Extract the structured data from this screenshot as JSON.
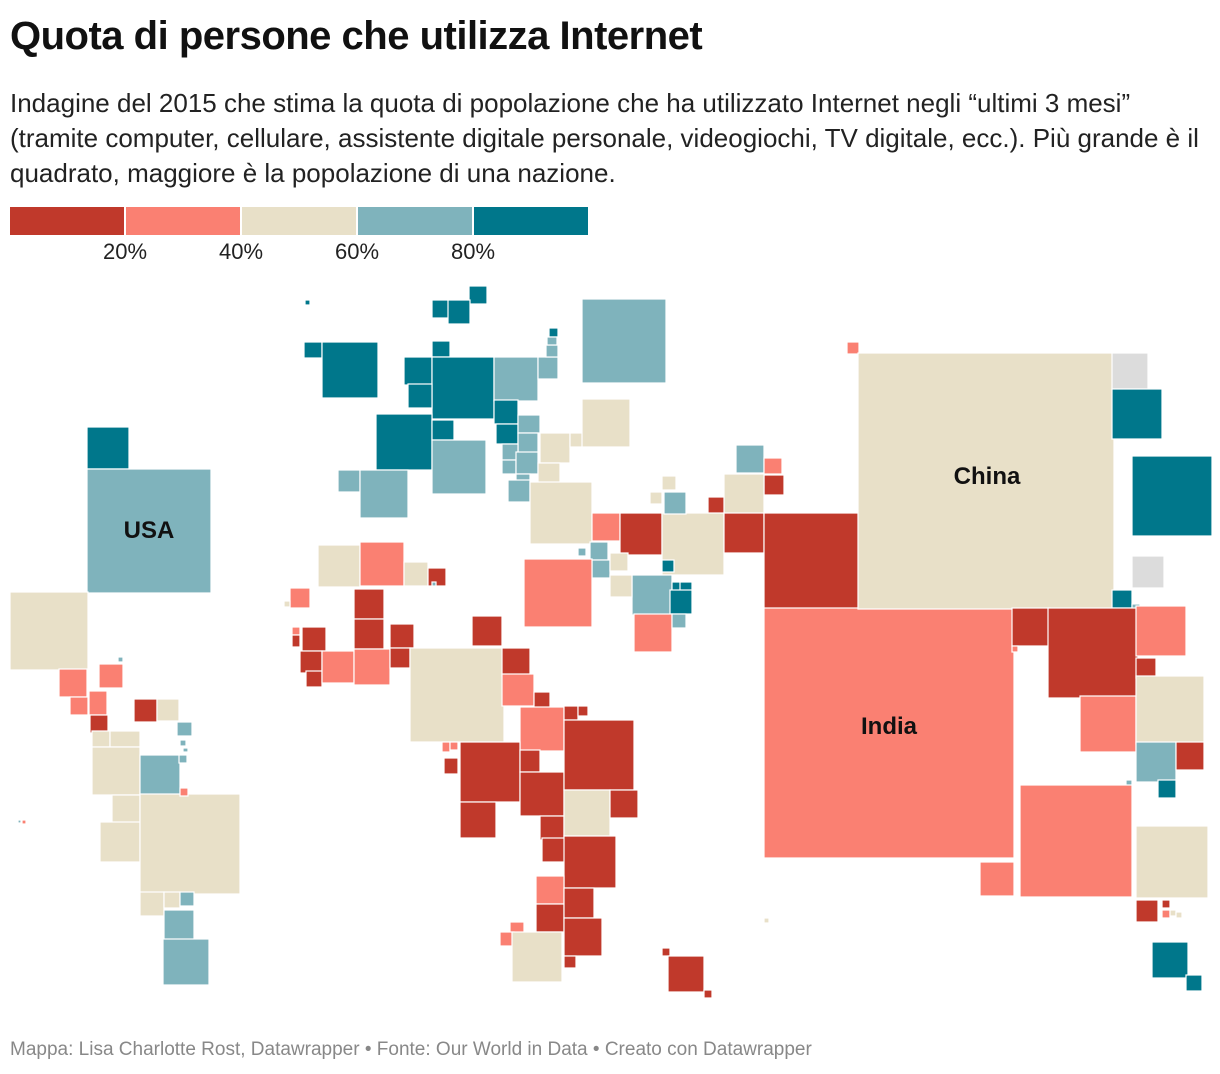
{
  "title": "Quota di persone che utilizza Internet",
  "subtitle": "Indagine del 2015 che stima la quota di popolazione che ha utilizzato Internet negli “ultimi 3 mesi” (tramite computer, cellulare, assistente digitale personale, videogiochi, TV digitale, ecc.). Più grande è il quadrato, maggiore è la popolazione di una nazione.",
  "legend": {
    "bins": [
      {
        "color": "#c0392b",
        "range": "0–20%"
      },
      {
        "color": "#fa8072",
        "range": "20–40%"
      },
      {
        "color": "#e8e0c8",
        "range": "40–60%"
      },
      {
        "color": "#7fb3bc",
        "range": "60–80%"
      },
      {
        "color": "#00778b",
        "range": "80–100%"
      }
    ],
    "ticks": [
      "20%",
      "40%",
      "60%",
      "80%"
    ],
    "no_data_color": "#dcdcdc"
  },
  "labels": {
    "usa": "USA",
    "china": "China",
    "india": "India"
  },
  "footer": "Mappa: Lisa Charlotte Rost, Datawrapper • Fonte: Our World in Data • Creato con Datawrapper"
}
